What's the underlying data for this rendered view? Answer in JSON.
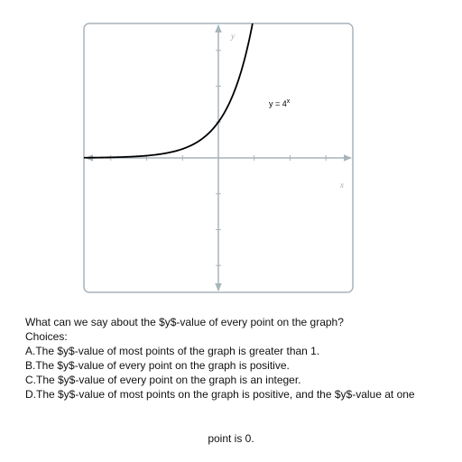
{
  "chart_data": {
    "type": "line",
    "title": "",
    "xlabel": "x",
    "ylabel": "y",
    "function_label": "y = 4",
    "function_exponent": "x",
    "xlim": [
      -3.75,
      3.75
    ],
    "ylim": [
      -3.75,
      3.75
    ],
    "grid": false,
    "axis_color": "#a8b4bc",
    "frame_color": "#a8b4bc",
    "curve_color": "#000000",
    "series": [
      {
        "function": "4^x",
        "x": [
          -3.75,
          -3,
          -2.5,
          -2,
          -1.5,
          -1,
          -0.75,
          -0.5,
          -0.25,
          0,
          0.25,
          0.5,
          0.75,
          0.95
        ],
        "y": [
          0.0055,
          0.0156,
          0.031,
          0.0625,
          0.125,
          0.25,
          0.354,
          0.5,
          0.707,
          1,
          1.414,
          2,
          2.828,
          3.73
        ]
      }
    ]
  },
  "question": {
    "prompt": "What can we say about the $y$-value of every point on the graph?",
    "choices_label": "Choices:",
    "choices": [
      "A.The $y$-value of most points of the graph is greater than 1.",
      "B.The $y$-value of every point on the graph is positive.",
      "C.The $y$-value of every point on the graph is an integer.",
      "D.The $y$-value of most points on the graph is positive, and the $y$-value at one"
    ],
    "trailing_text": "point is 0."
  }
}
